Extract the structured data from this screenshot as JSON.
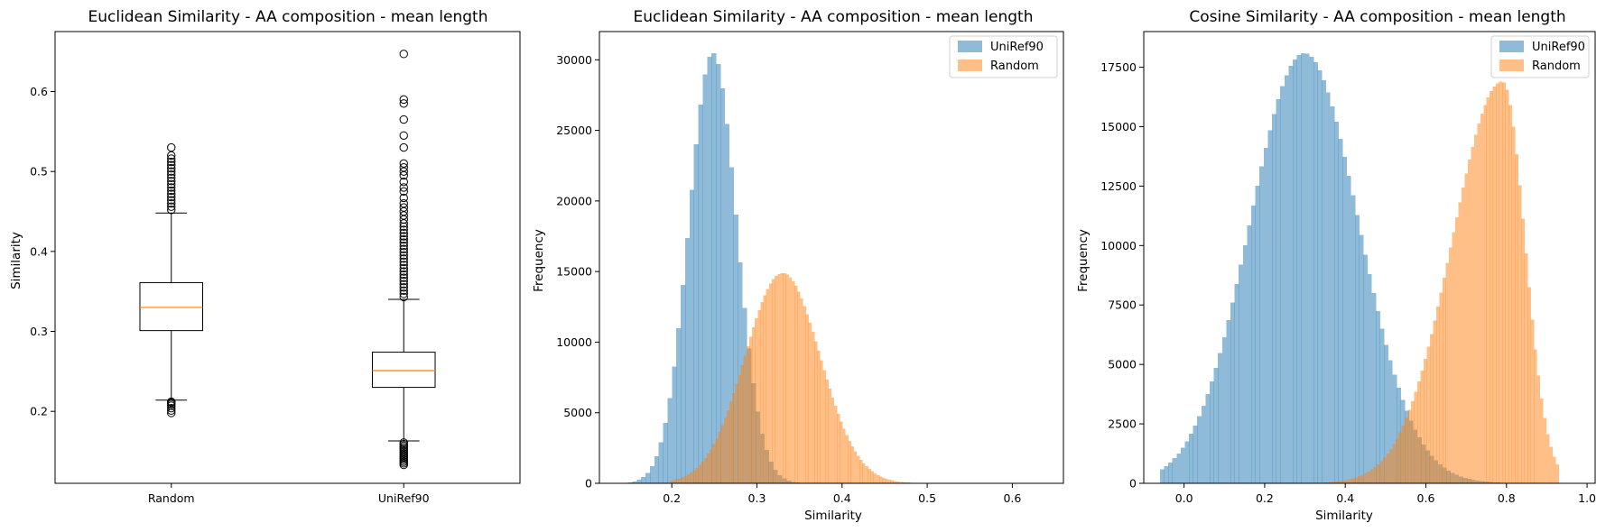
{
  "colors": {
    "blue": "#1f77b4",
    "orange": "#ff7f0e",
    "median": "#ff7f0e",
    "axis": "#000000"
  },
  "chart_data": [
    {
      "type": "box",
      "title": "Euclidean Similarity - AA composition - mean length",
      "xlabel": "",
      "ylabel": "Similarity",
      "ylim": [
        0.11,
        0.675
      ],
      "yticks": [
        0.2,
        0.3,
        0.4,
        0.5,
        0.6
      ],
      "ytick_labels": [
        "0.2",
        "0.3",
        "0.4",
        "0.5",
        "0.6"
      ],
      "categories": [
        "Random",
        "UniRef90"
      ],
      "boxes": [
        {
          "name": "Random",
          "whisker_low": 0.214,
          "q1": 0.301,
          "median": 0.33,
          "q3": 0.361,
          "whisker_high": 0.448,
          "outliers": [
            0.198,
            0.201,
            0.204,
            0.207,
            0.209,
            0.211,
            0.212,
            0.452,
            0.456,
            0.46,
            0.464,
            0.468,
            0.472,
            0.476,
            0.48,
            0.484,
            0.488,
            0.492,
            0.496,
            0.5,
            0.504,
            0.508,
            0.512,
            0.516,
            0.52,
            0.53
          ]
        },
        {
          "name": "UniRef90",
          "whisker_low": 0.163,
          "q1": 0.23,
          "median": 0.251,
          "q3": 0.274,
          "whisker_high": 0.34,
          "outliers": [
            0.133,
            0.135,
            0.137,
            0.139,
            0.141,
            0.143,
            0.145,
            0.147,
            0.149,
            0.151,
            0.153,
            0.155,
            0.157,
            0.159,
            0.161,
            0.343,
            0.347,
            0.351,
            0.355,
            0.359,
            0.363,
            0.367,
            0.371,
            0.375,
            0.379,
            0.383,
            0.387,
            0.391,
            0.395,
            0.399,
            0.403,
            0.407,
            0.411,
            0.415,
            0.419,
            0.423,
            0.427,
            0.431,
            0.435,
            0.44,
            0.445,
            0.45,
            0.455,
            0.46,
            0.467,
            0.475,
            0.48,
            0.487,
            0.495,
            0.5,
            0.505,
            0.51,
            0.53,
            0.545,
            0.565,
            0.585,
            0.59,
            0.647
          ]
        }
      ]
    },
    {
      "type": "histogram",
      "title": "Euclidean Similarity - AA composition - mean length",
      "xlabel": "Similarity",
      "ylabel": "Frequency",
      "xlim": [
        0.115,
        0.66
      ],
      "ylim": [
        0,
        32000
      ],
      "xticks": [
        0.2,
        0.3,
        0.4,
        0.5,
        0.6
      ],
      "xtick_labels": [
        "0.2",
        "0.3",
        "0.4",
        "0.5",
        "0.6"
      ],
      "yticks": [
        0,
        5000,
        10000,
        15000,
        20000,
        25000,
        30000
      ],
      "ytick_labels": [
        "0",
        "5000",
        "10000",
        "15000",
        "20000",
        "25000",
        "30000"
      ],
      "legend_position": "top-right",
      "series": [
        {
          "name": "UniRef90",
          "color": "#1f77b4",
          "alpha": 0.5,
          "distribution": "normal",
          "peak": 30500,
          "mode": 0.248,
          "sd": 0.028,
          "range": [
            0.133,
            0.65
          ],
          "bins": 100
        },
        {
          "name": "Random",
          "color": "#ff7f0e",
          "alpha": 0.5,
          "distribution": "normal",
          "peak": 14900,
          "mode": 0.33,
          "sd": 0.044,
          "range": [
            0.198,
            0.53
          ],
          "bins": 100
        }
      ]
    },
    {
      "type": "histogram",
      "title": "Cosine Similarity - AA composition - mean length",
      "xlabel": "Similarity",
      "ylabel": "Frequency",
      "xlim": [
        -0.1,
        1.02
      ],
      "ylim": [
        0,
        19000
      ],
      "xticks": [
        0.0,
        0.2,
        0.4,
        0.6,
        0.8,
        1.0
      ],
      "xtick_labels": [
        "0.0",
        "0.2",
        "0.4",
        "0.6",
        "0.8",
        "1.0"
      ],
      "yticks": [
        0,
        2500,
        5000,
        7500,
        10000,
        12500,
        15000,
        17500
      ],
      "ytick_labels": [
        "0",
        "2500",
        "5000",
        "7500",
        "10000",
        "12500",
        "15000",
        "17500"
      ],
      "legend_position": "top-right",
      "series": [
        {
          "name": "UniRef90",
          "color": "#1f77b4",
          "alpha": 0.5,
          "distribution": "normal",
          "peak": 18100,
          "mode": 0.298,
          "sd": 0.135,
          "range": [
            -0.06,
            0.97
          ],
          "bins": 100
        },
        {
          "name": "Random",
          "color": "#ff7f0e",
          "alpha": 0.5,
          "distribution": "skewed",
          "peak": 16900,
          "mode": 0.79,
          "sd_left": 0.125,
          "sd_right": 0.055,
          "range": [
            0.15,
            0.93
          ],
          "bins": 100
        }
      ]
    }
  ]
}
